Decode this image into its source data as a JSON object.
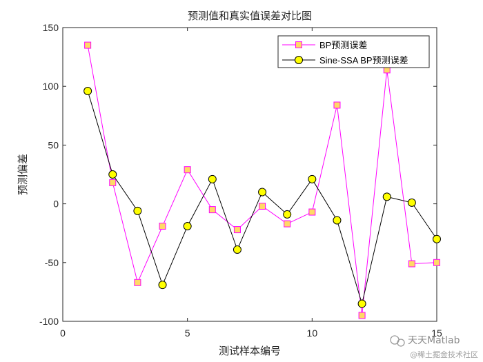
{
  "chart_data": {
    "type": "line",
    "title": "预测值和真实值误差对比图",
    "xlabel": "测试样本编号",
    "ylabel": "预测偏差",
    "xlim": [
      0,
      15
    ],
    "ylim": [
      -100,
      150
    ],
    "xticks": [
      0,
      5,
      10,
      15
    ],
    "yticks": [
      150,
      100,
      50,
      0,
      -50,
      -100
    ],
    "legend_position": "top-right",
    "x": [
      1,
      2,
      3,
      4,
      5,
      6,
      7,
      8,
      9,
      10,
      11,
      12,
      13,
      14,
      15
    ],
    "series": [
      {
        "name": "BP预测误差",
        "color": "#ff00ff",
        "marker": "square",
        "marker_fill": "#ffd966",
        "values": [
          135,
          18,
          -67,
          -19,
          29,
          -5,
          -22,
          -2,
          -17,
          -7,
          84,
          -95,
          114,
          -51,
          -50
        ]
      },
      {
        "name": "Sine-SSA BP预测误差",
        "color": "#000000",
        "marker": "circle",
        "marker_fill": "#ffff00",
        "values": [
          96,
          25,
          -6,
          -69,
          -19,
          21,
          -39,
          10,
          -9,
          21,
          -14,
          -85,
          6,
          1,
          -30
        ]
      }
    ]
  },
  "watermark": {
    "line1": "天天Matlab",
    "line2": "@稀土掘金技术社区"
  }
}
